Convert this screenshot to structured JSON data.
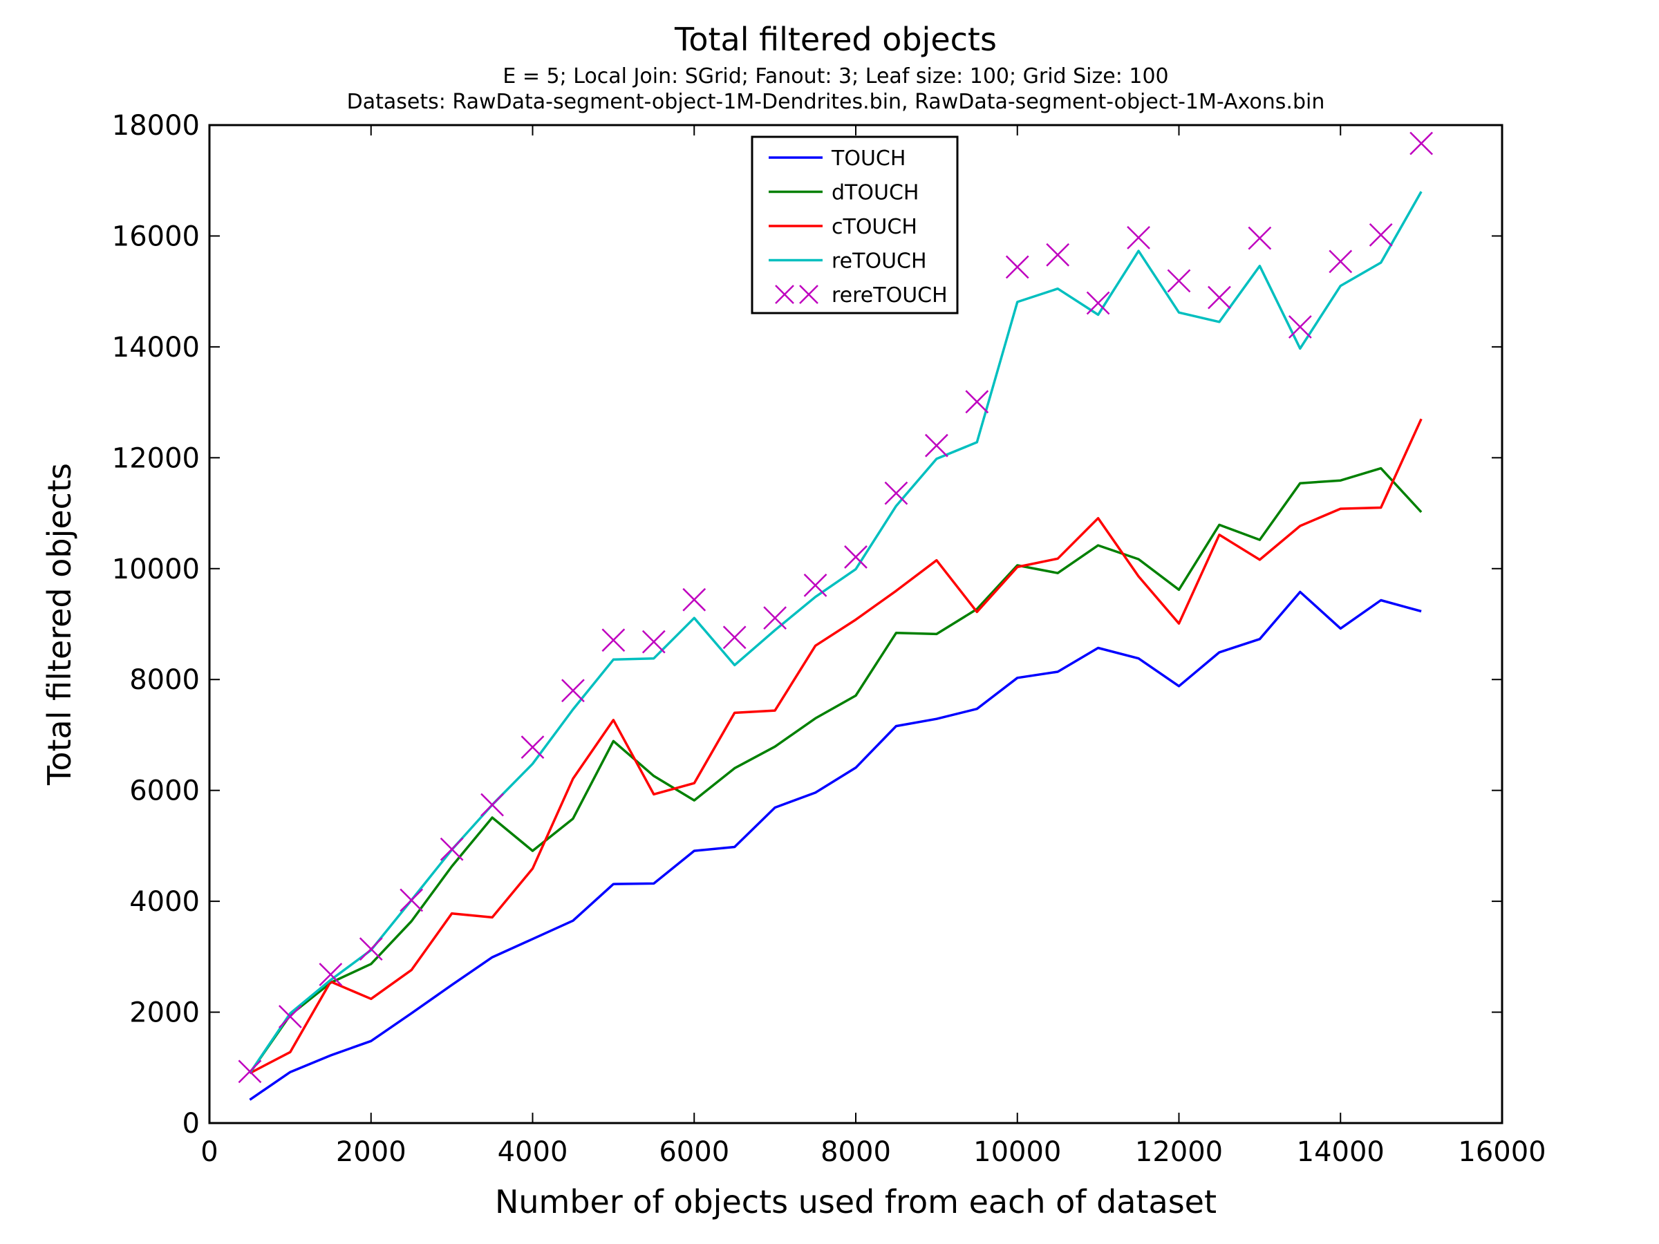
{
  "chart_data": {
    "type": "line",
    "title": "Total filtered objects",
    "subtitle_lines": [
      "E = 5; Local Join: SGrid; Fanout: 3; Leaf size: 100; Grid Size: 100",
      "Datasets: RawData-segment-object-1M-Dendrites.bin, RawData-segment-object-1M-Axons.bin"
    ],
    "xlabel": "Number of objects used from each of dataset",
    "ylabel": "Total filtered objects",
    "xlim": [
      0,
      16000
    ],
    "ylim": [
      0,
      18000
    ],
    "xticks": [
      0,
      2000,
      4000,
      6000,
      8000,
      10000,
      12000,
      14000,
      16000
    ],
    "yticks": [
      0,
      2000,
      4000,
      6000,
      8000,
      10000,
      12000,
      14000,
      16000,
      18000
    ],
    "grid": false,
    "legend_position": "top-center",
    "x": [
      500,
      1000,
      1500,
      2000,
      2500,
      3000,
      3500,
      4000,
      4500,
      5000,
      5500,
      6000,
      6500,
      7000,
      7500,
      8000,
      8500,
      9000,
      9500,
      10000,
      10500,
      11000,
      11500,
      12000,
      12500,
      13000,
      13500,
      14000,
      14500,
      15000
    ],
    "series": [
      {
        "name": "TOUCH",
        "color": "#0000ff",
        "marker": "line",
        "values": [
          420,
          920,
          1220,
          1480,
          1980,
          2490,
          2990,
          3320,
          3650,
          4310,
          4320,
          4910,
          4980,
          5690,
          5960,
          6410,
          7160,
          7290,
          7470,
          8030,
          8140,
          8570,
          8380,
          7880,
          8490,
          8730,
          9580,
          8920,
          9430,
          9230
        ]
      },
      {
        "name": "dTOUCH",
        "color": "#008000",
        "marker": "line",
        "values": [
          900,
          1950,
          2530,
          2870,
          3640,
          4630,
          5510,
          4910,
          5490,
          6890,
          6260,
          5820,
          6400,
          6790,
          7300,
          7710,
          8840,
          8820,
          9270,
          10060,
          9920,
          10420,
          10170,
          9620,
          10790,
          10520,
          11540,
          11590,
          11810,
          11020
        ]
      },
      {
        "name": "cTOUCH",
        "color": "#ff0000",
        "marker": "line",
        "values": [
          900,
          1280,
          2550,
          2240,
          2760,
          3780,
          3710,
          4590,
          6210,
          7270,
          5930,
          6130,
          7400,
          7440,
          8610,
          9080,
          9600,
          10150,
          9220,
          10030,
          10180,
          10910,
          9860,
          9010,
          10610,
          10160,
          10770,
          11080,
          11100,
          12700
        ]
      },
      {
        "name": "reTOUCH",
        "color": "#00bfbf",
        "marker": "line",
        "values": [
          900,
          1980,
          2580,
          3120,
          4020,
          4930,
          5740,
          6480,
          7460,
          8360,
          8380,
          9110,
          8260,
          8890,
          9490,
          9990,
          11130,
          11980,
          12280,
          14810,
          15050,
          14580,
          15730,
          14620,
          14450,
          15460,
          13970,
          15100,
          15520,
          16800
        ]
      },
      {
        "name": "rereTOUCH",
        "color": "#bf00bf",
        "marker": "x",
        "values": [
          930,
          1920,
          2680,
          3140,
          4020,
          4940,
          5740,
          6780,
          7800,
          8710,
          8680,
          9440,
          8760,
          9110,
          9700,
          10210,
          11360,
          12220,
          13010,
          15440,
          15660,
          14790,
          15970,
          15190,
          14890,
          15960,
          14360,
          15540,
          16020,
          17670
        ]
      }
    ]
  }
}
